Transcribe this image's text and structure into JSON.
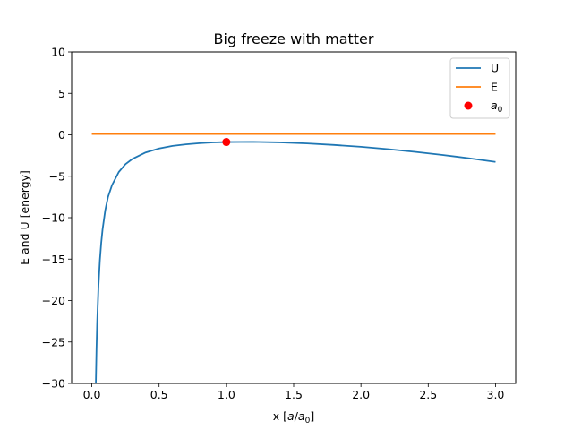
{
  "chart_data": {
    "type": "line",
    "title": "Big freeze with matter",
    "xlabel": "x [a/a₀]",
    "xlabel_parts": {
      "prefix": "x [",
      "var_a": "a",
      "slash": "/",
      "var_a0": "a",
      "sub0": "0",
      "suffix": "]"
    },
    "ylabel": "E and U [energy]",
    "xlim": [
      -0.15,
      3.15
    ],
    "ylim": [
      -30,
      10
    ],
    "xticks": [
      0.0,
      0.5,
      1.0,
      1.5,
      2.0,
      2.5,
      3.0
    ],
    "xtick_labels": [
      "0.0",
      "0.5",
      "1.0",
      "1.5",
      "2.0",
      "2.5",
      "3.0"
    ],
    "yticks": [
      10,
      5,
      0,
      -5,
      -10,
      -15,
      -20,
      -25,
      -30
    ],
    "ytick_labels": [
      "10",
      "5",
      "0",
      "−5",
      "−10",
      "−15",
      "−20",
      "−25",
      "−30"
    ],
    "grid": false,
    "legend_position": "upper right",
    "series": [
      {
        "name": "U",
        "color": "#1f77b4",
        "x": [
          0.03,
          0.035,
          0.04,
          0.05,
          0.06,
          0.07,
          0.08,
          0.1,
          0.12,
          0.15,
          0.2,
          0.25,
          0.3,
          0.4,
          0.5,
          0.6,
          0.7,
          0.8,
          0.9,
          1.0,
          1.2,
          1.4,
          1.6,
          1.8,
          2.0,
          2.2,
          2.4,
          2.6,
          2.8,
          3.0
        ],
        "y": [
          -30.0,
          -25.75,
          -22.56,
          -18.13,
          -15.16,
          -13.02,
          -11.42,
          -9.1,
          -7.53,
          -6.08,
          -4.5,
          -3.55,
          -2.93,
          -2.13,
          -1.65,
          -1.34,
          -1.15,
          -1.01,
          -0.92,
          -0.87,
          -0.85,
          -0.91,
          -1.04,
          -1.22,
          -1.45,
          -1.73,
          -2.05,
          -2.42,
          -2.82,
          -3.27
        ]
      },
      {
        "name": "E",
        "color": "#ff7f0e",
        "x": [
          0.0,
          3.0
        ],
        "y": [
          0.1,
          0.1
        ]
      },
      {
        "name": "a₀",
        "legend_var": "a",
        "legend_sub": "0",
        "color": "#ff0000",
        "marker": "o",
        "x": [
          1.0
        ],
        "y": [
          -0.87
        ]
      }
    ]
  }
}
